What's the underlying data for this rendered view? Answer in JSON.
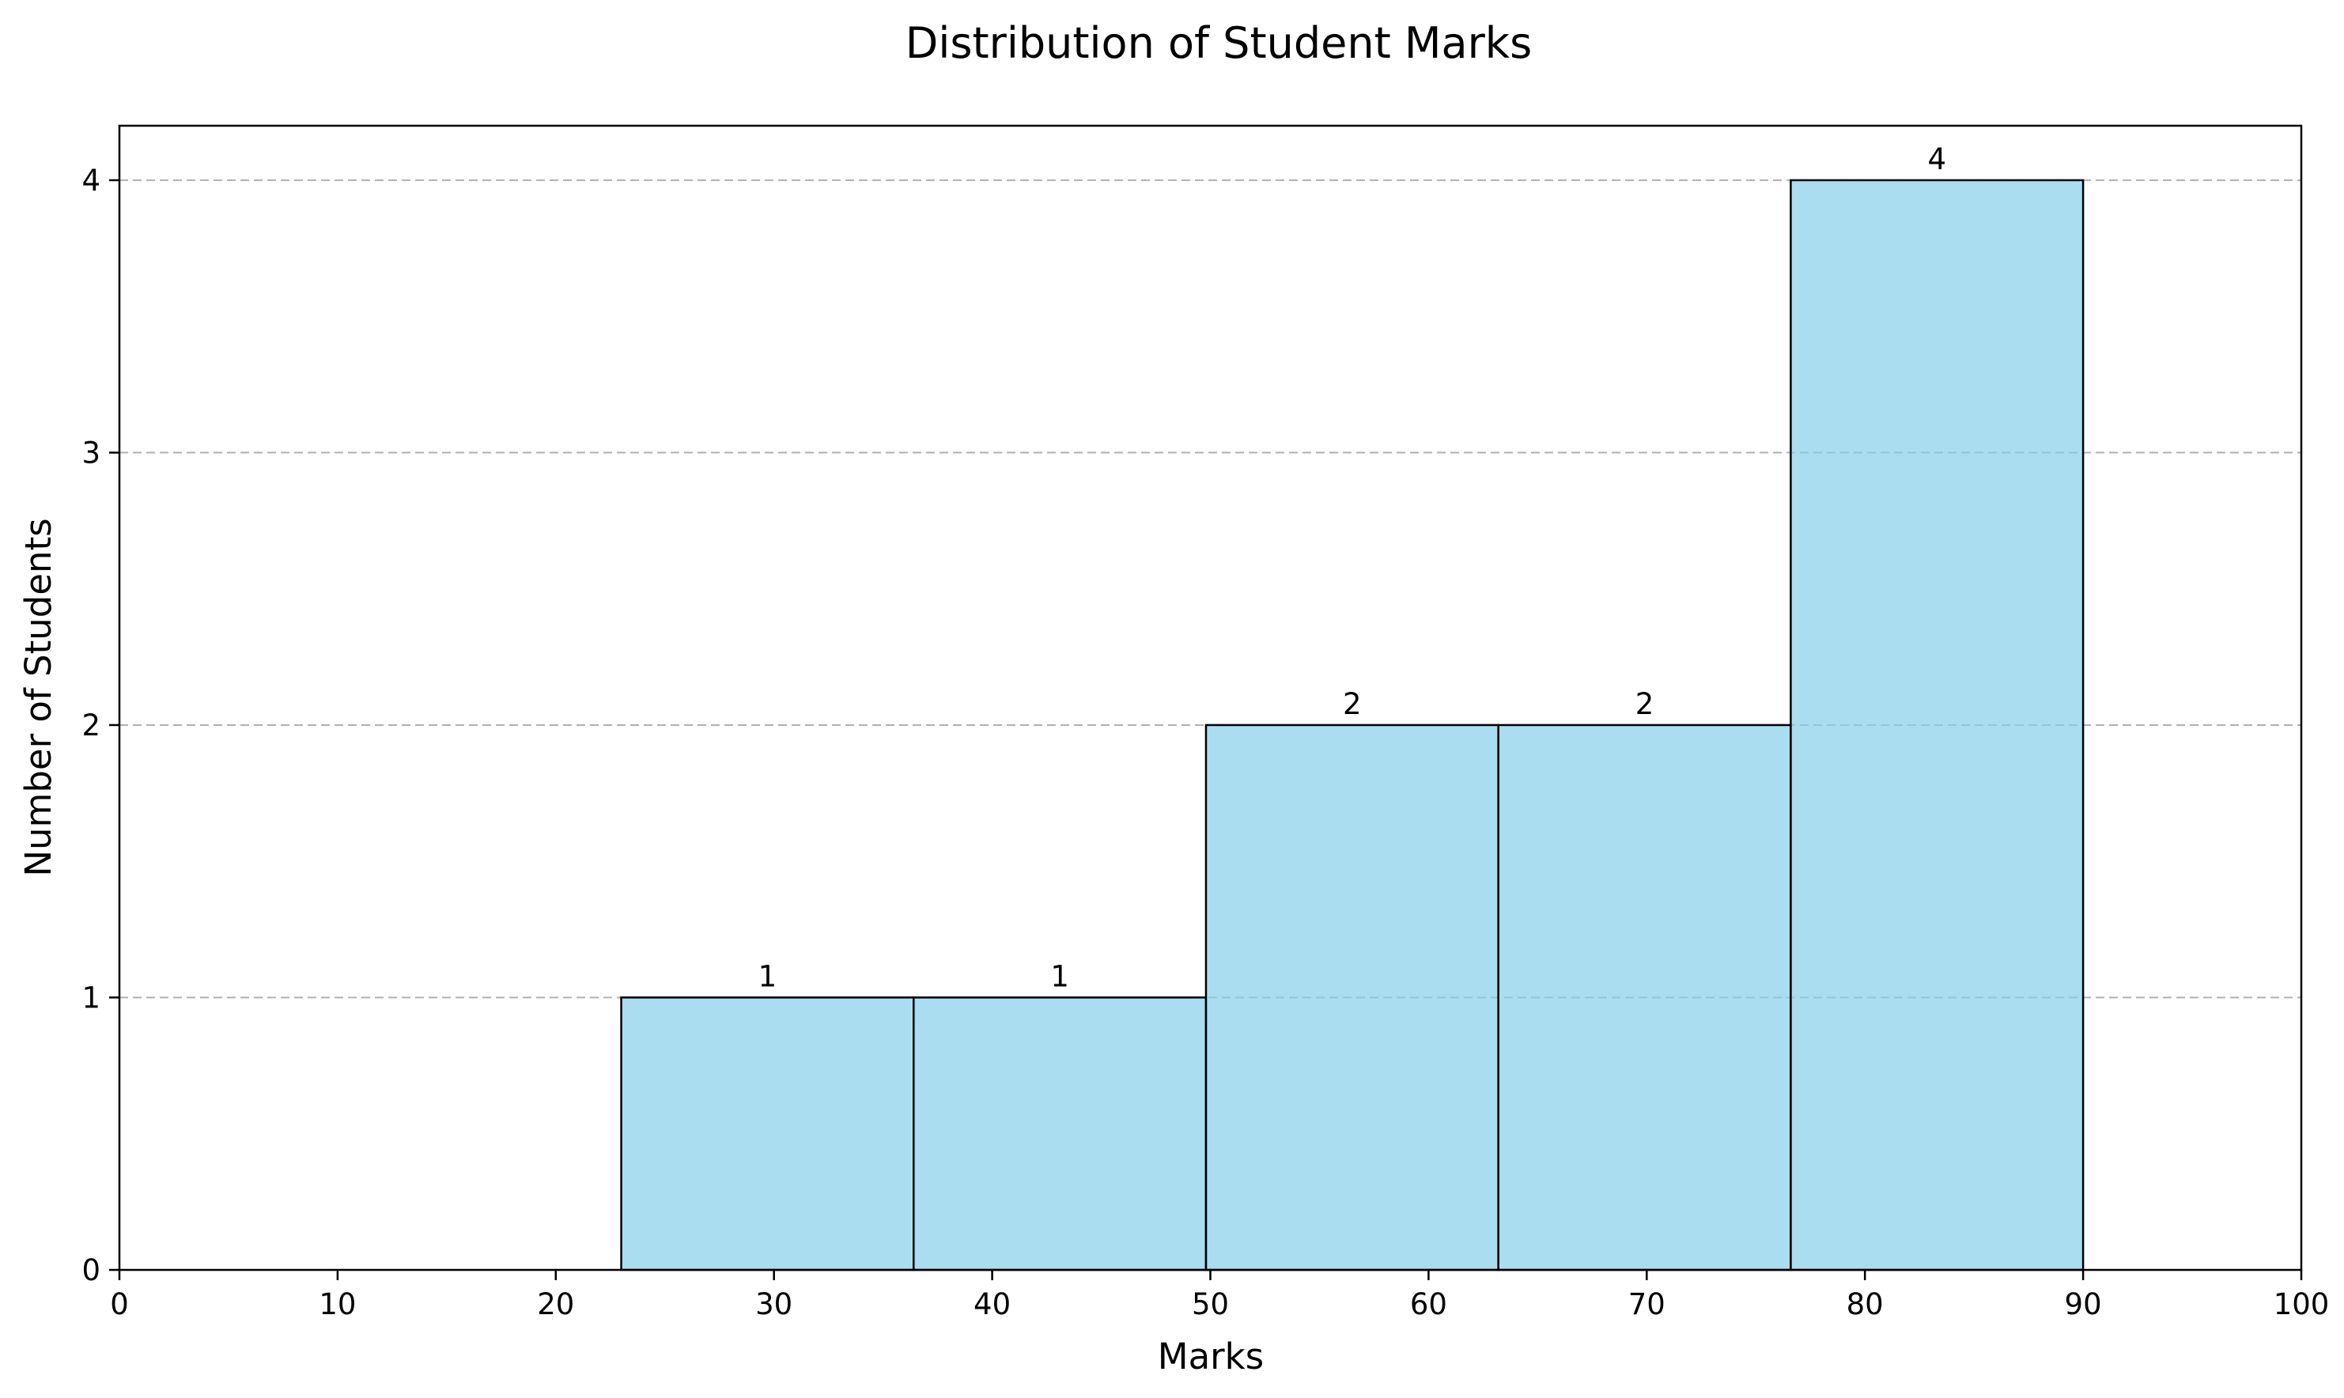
{
  "chart_data": {
    "type": "bar",
    "subtype": "histogram",
    "title": "Distribution of Student Marks",
    "xlabel": "Marks",
    "ylabel": "Number of Students",
    "xlim": [
      0,
      100
    ],
    "ylim": [
      0,
      4.2
    ],
    "x_ticks": [
      0,
      10,
      20,
      30,
      40,
      50,
      60,
      70,
      80,
      90,
      100
    ],
    "y_ticks": [
      0,
      1,
      2,
      3,
      4
    ],
    "grid": "y-dashed",
    "bins": [
      {
        "x0": 23.0,
        "x1": 36.4,
        "count": 1
      },
      {
        "x0": 36.4,
        "x1": 49.8,
        "count": 1
      },
      {
        "x0": 49.8,
        "x1": 63.2,
        "count": 2
      },
      {
        "x0": 63.2,
        "x1": 76.6,
        "count": 2
      },
      {
        "x0": 76.6,
        "x1": 90.0,
        "count": 4
      }
    ],
    "colors": {
      "bar_fill": "#87ceeb",
      "bar_edge": "#000000",
      "grid": "#b0b0b0"
    }
  }
}
